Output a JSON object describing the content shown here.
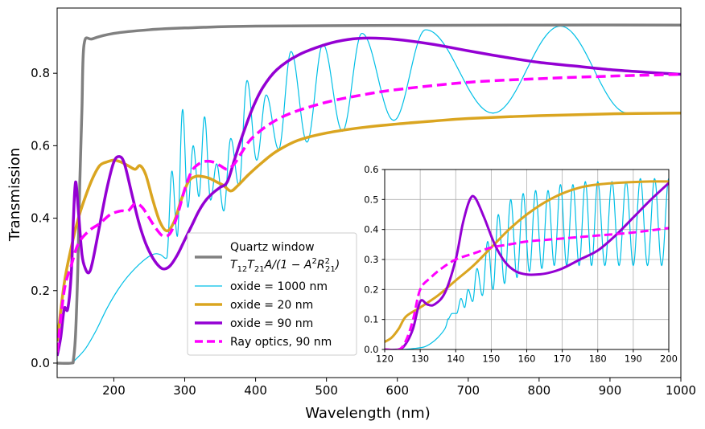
{
  "chart_data": [
    {
      "type": "line",
      "panel": "main",
      "xlabel": "Wavelength (nm)",
      "ylabel": "Transmission",
      "xlim": [
        120,
        1000
      ],
      "ylim": [
        -0.04,
        0.98
      ],
      "xticks": [
        200,
        300,
        400,
        500,
        600,
        700,
        800,
        900,
        1000
      ],
      "xtick_labels": [
        "200",
        "300",
        "400",
        "500",
        "600",
        "700",
        "800",
        "900",
        "1000"
      ],
      "yticks": [
        0.0,
        0.2,
        0.4,
        0.6,
        0.8
      ],
      "ytick_labels": [
        "0.0",
        "0.2",
        "0.4",
        "0.6",
        "0.8"
      ],
      "grid": false,
      "legend": {
        "position": "lower-center",
        "entries": [
          {
            "line1": "Quartz window",
            "line2": "T12T21A/(1 − A2R212)",
            "color": "#808080",
            "style": "solid",
            "width": 3.5
          },
          {
            "line1": "oxide = 1000 nm",
            "color": "#00bfe6",
            "style": "solid",
            "width": 1.2
          },
          {
            "line1": "oxide = 20 nm",
            "color": "#daa520",
            "style": "solid",
            "width": 3.5
          },
          {
            "line1": "oxide = 90 nm",
            "color": "#9400d3",
            "style": "solid",
            "width": 3.5
          },
          {
            "line1": "Ray optics, 90 nm",
            "color": "#ff00ff",
            "style": "dashed",
            "width": 3.5
          }
        ]
      },
      "series": [
        {
          "name": "Quartz window",
          "color": "#808080",
          "points": [
            [
              120,
              0
            ],
            [
              140,
              0
            ],
            [
              143,
              0.01
            ],
            [
              146,
              0.08
            ],
            [
              149,
              0.25
            ],
            [
              152,
              0.5
            ],
            [
              155,
              0.7
            ],
            [
              158,
              0.88
            ],
            [
              170,
              0.895
            ],
            [
              200,
              0.91
            ],
            [
              250,
              0.92
            ],
            [
              300,
              0.925
            ],
            [
              400,
              0.93
            ],
            [
              600,
              0.932
            ],
            [
              800,
              0.933
            ],
            [
              1000,
              0.933
            ]
          ]
        },
        {
          "name": "oxide = 20 nm",
          "color": "#daa520",
          "points": [
            [
              120,
              0.06
            ],
            [
              130,
              0.22
            ],
            [
              140,
              0.32
            ],
            [
              150,
              0.4
            ],
            [
              160,
              0.46
            ],
            [
              170,
              0.51
            ],
            [
              180,
              0.545
            ],
            [
              190,
              0.555
            ],
            [
              200,
              0.56
            ],
            [
              210,
              0.555
            ],
            [
              220,
              0.545
            ],
            [
              230,
              0.535
            ],
            [
              237,
              0.545
            ],
            [
              245,
              0.52
            ],
            [
              255,
              0.45
            ],
            [
              265,
              0.39
            ],
            [
              275,
              0.365
            ],
            [
              285,
              0.39
            ],
            [
              295,
              0.45
            ],
            [
              305,
              0.5
            ],
            [
              315,
              0.515
            ],
            [
              325,
              0.515
            ],
            [
              335,
              0.51
            ],
            [
              345,
              0.5
            ],
            [
              355,
              0.49
            ],
            [
              365,
              0.475
            ],
            [
              375,
              0.49
            ],
            [
              390,
              0.52
            ],
            [
              410,
              0.555
            ],
            [
              430,
              0.585
            ],
            [
              460,
              0.615
            ],
            [
              500,
              0.635
            ],
            [
              550,
              0.65
            ],
            [
              600,
              0.66
            ],
            [
              650,
              0.668
            ],
            [
              700,
              0.675
            ],
            [
              800,
              0.683
            ],
            [
              900,
              0.688
            ],
            [
              1000,
              0.69
            ]
          ]
        },
        {
          "name": "oxide = 90 nm",
          "color": "#9400d3",
          "points": [
            [
              120,
              0.02
            ],
            [
              125,
              0.07
            ],
            [
              130,
              0.15
            ],
            [
              135,
              0.15
            ],
            [
              140,
              0.25
            ],
            [
              143,
              0.4
            ],
            [
              146,
              0.5
            ],
            [
              150,
              0.42
            ],
            [
              155,
              0.3
            ],
            [
              160,
              0.26
            ],
            [
              165,
              0.25
            ],
            [
              170,
              0.28
            ],
            [
              180,
              0.38
            ],
            [
              190,
              0.48
            ],
            [
              200,
              0.555
            ],
            [
              208,
              0.57
            ],
            [
              215,
              0.55
            ],
            [
              225,
              0.47
            ],
            [
              235,
              0.39
            ],
            [
              245,
              0.33
            ],
            [
              255,
              0.29
            ],
            [
              265,
              0.265
            ],
            [
              272,
              0.26
            ],
            [
              280,
              0.27
            ],
            [
              290,
              0.3
            ],
            [
              300,
              0.34
            ],
            [
              310,
              0.38
            ],
            [
              320,
              0.42
            ],
            [
              330,
              0.45
            ],
            [
              340,
              0.47
            ],
            [
              350,
              0.485
            ],
            [
              360,
              0.5
            ],
            [
              370,
              0.56
            ],
            [
              380,
              0.62
            ],
            [
              395,
              0.7
            ],
            [
              410,
              0.76
            ],
            [
              430,
              0.81
            ],
            [
              460,
              0.85
            ],
            [
              500,
              0.88
            ],
            [
              530,
              0.893
            ],
            [
              560,
              0.897
            ],
            [
              600,
              0.893
            ],
            [
              650,
              0.88
            ],
            [
              700,
              0.862
            ],
            [
              750,
              0.845
            ],
            [
              800,
              0.83
            ],
            [
              850,
              0.82
            ],
            [
              900,
              0.81
            ],
            [
              950,
              0.803
            ],
            [
              1000,
              0.797
            ]
          ]
        },
        {
          "name": "Ray optics, 90 nm",
          "color": "#ff00ff",
          "dashed": true,
          "points": [
            [
              120,
              0.03
            ],
            [
              130,
              0.2
            ],
            [
              140,
              0.27
            ],
            [
              150,
              0.33
            ],
            [
              165,
              0.365
            ],
            [
              180,
              0.385
            ],
            [
              195,
              0.41
            ],
            [
              210,
              0.42
            ],
            [
              220,
              0.42
            ],
            [
              230,
              0.44
            ],
            [
              240,
              0.43
            ],
            [
              250,
              0.4
            ],
            [
              260,
              0.37
            ],
            [
              270,
              0.35
            ],
            [
              280,
              0.36
            ],
            [
              290,
              0.41
            ],
            [
              300,
              0.48
            ],
            [
              310,
              0.53
            ],
            [
              320,
              0.55
            ],
            [
              330,
              0.557
            ],
            [
              340,
              0.555
            ],
            [
              350,
              0.545
            ],
            [
              360,
              0.535
            ],
            [
              370,
              0.55
            ],
            [
              380,
              0.58
            ],
            [
              390,
              0.61
            ],
            [
              400,
              0.63
            ],
            [
              420,
              0.66
            ],
            [
              450,
              0.69
            ],
            [
              500,
              0.72
            ],
            [
              550,
              0.74
            ],
            [
              600,
              0.755
            ],
            [
              700,
              0.775
            ],
            [
              800,
              0.785
            ],
            [
              900,
              0.792
            ],
            [
              1000,
              0.797
            ]
          ]
        },
        {
          "name": "oxide = 1000 nm",
          "color": "#00bfe6",
          "generator": "oscillating",
          "note": "Fabry-Perot oscillation about the 90 nm envelope",
          "peaks_nm": [
            282,
            297,
            312,
            328,
            345,
            365,
            388,
            415,
            450,
            495,
            550,
            640,
            830
          ],
          "peak_values": [
            0.53,
            0.7,
            0.6,
            0.68,
            0.55,
            0.62,
            0.78,
            0.74,
            0.86,
            0.88,
            0.91,
            0.92,
            0.93
          ],
          "valley_values": [
            0.29,
            0.35,
            0.43,
            0.46,
            0.45,
            0.42,
            0.49,
            0.56,
            0.59,
            0.61,
            0.64,
            0.67,
            0.69
          ]
        }
      ]
    },
    {
      "type": "line",
      "panel": "inset",
      "xlim": [
        120,
        200
      ],
      "ylim": [
        0.0,
        0.6
      ],
      "xticks": [
        120,
        130,
        140,
        150,
        160,
        170,
        180,
        190,
        200
      ],
      "xtick_labels": [
        "120",
        "130",
        "140",
        "150",
        "160",
        "170",
        "180",
        "190",
        "200"
      ],
      "yticks": [
        0.0,
        0.1,
        0.2,
        0.3,
        0.4,
        0.5,
        0.6
      ],
      "ytick_labels": [
        "0.0",
        "0.1",
        "0.2",
        "0.3",
        "0.4",
        "0.5",
        "0.6"
      ],
      "grid": true,
      "series": [
        {
          "name": "oxide = 20 nm",
          "color": "#daa520",
          "points": [
            [
              120,
              0.025
            ],
            [
              122,
              0.04
            ],
            [
              124,
              0.07
            ],
            [
              126,
              0.11
            ],
            [
              130,
              0.14
            ],
            [
              135,
              0.18
            ],
            [
              140,
              0.23
            ],
            [
              145,
              0.28
            ],
            [
              150,
              0.34
            ],
            [
              155,
              0.4
            ],
            [
              160,
              0.45
            ],
            [
              165,
              0.49
            ],
            [
              170,
              0.52
            ],
            [
              175,
              0.54
            ],
            [
              180,
              0.55
            ],
            [
              185,
              0.555
            ],
            [
              190,
              0.558
            ],
            [
              195,
              0.56
            ],
            [
              200,
              0.56
            ]
          ]
        },
        {
          "name": "oxide = 90 nm",
          "color": "#9400d3",
          "points": [
            [
              120,
              0.0
            ],
            [
              124,
              0.0
            ],
            [
              126,
              0.02
            ],
            [
              128,
              0.07
            ],
            [
              130,
              0.16
            ],
            [
              132,
              0.15
            ],
            [
              134,
              0.15
            ],
            [
              137,
              0.19
            ],
            [
              140,
              0.3
            ],
            [
              142,
              0.42
            ],
            [
              144,
              0.5
            ],
            [
              145.5,
              0.505
            ],
            [
              148,
              0.44
            ],
            [
              151,
              0.35
            ],
            [
              154,
              0.29
            ],
            [
              157,
              0.26
            ],
            [
              160,
              0.25
            ],
            [
              163,
              0.25
            ],
            [
              166,
              0.255
            ],
            [
              170,
              0.27
            ],
            [
              175,
              0.3
            ],
            [
              180,
              0.33
            ],
            [
              185,
              0.38
            ],
            [
              190,
              0.44
            ],
            [
              195,
              0.5
            ],
            [
              200,
              0.555
            ]
          ]
        },
        {
          "name": "Ray optics, 90 nm",
          "color": "#ff00ff",
          "dashed": true,
          "points": [
            [
              120,
              0.0
            ],
            [
              124,
              0.0
            ],
            [
              126,
              0.03
            ],
            [
              128,
              0.1
            ],
            [
              130,
              0.2
            ],
            [
              133,
              0.24
            ],
            [
              136,
              0.27
            ],
            [
              140,
              0.3
            ],
            [
              145,
              0.32
            ],
            [
              150,
              0.34
            ],
            [
              155,
              0.35
            ],
            [
              160,
              0.36
            ],
            [
              165,
              0.365
            ],
            [
              170,
              0.37
            ],
            [
              180,
              0.38
            ],
            [
              190,
              0.39
            ],
            [
              200,
              0.405
            ]
          ]
        },
        {
          "name": "oxide = 1000 nm",
          "color": "#00bfe6",
          "generator": "oscillating",
          "peaks_nm": [
            139,
            141.5,
            143.5,
            146,
            149,
            152,
            155.5,
            159,
            162.5,
            166,
            169.5,
            173,
            176.5,
            180,
            184,
            188,
            192,
            196,
            200
          ],
          "peak_values": [
            0.12,
            0.17,
            0.2,
            0.27,
            0.36,
            0.45,
            0.5,
            0.52,
            0.53,
            0.53,
            0.55,
            0.55,
            0.56,
            0.56,
            0.56,
            0.56,
            0.57,
            0.57,
            0.57
          ],
          "valley_values": [
            0.1,
            0.12,
            0.14,
            0.16,
            0.18,
            0.2,
            0.22,
            0.24,
            0.26,
            0.27,
            0.28,
            0.28,
            0.28,
            0.28,
            0.28,
            0.28,
            0.28,
            0.28,
            0.28
          ]
        }
      ]
    }
  ]
}
